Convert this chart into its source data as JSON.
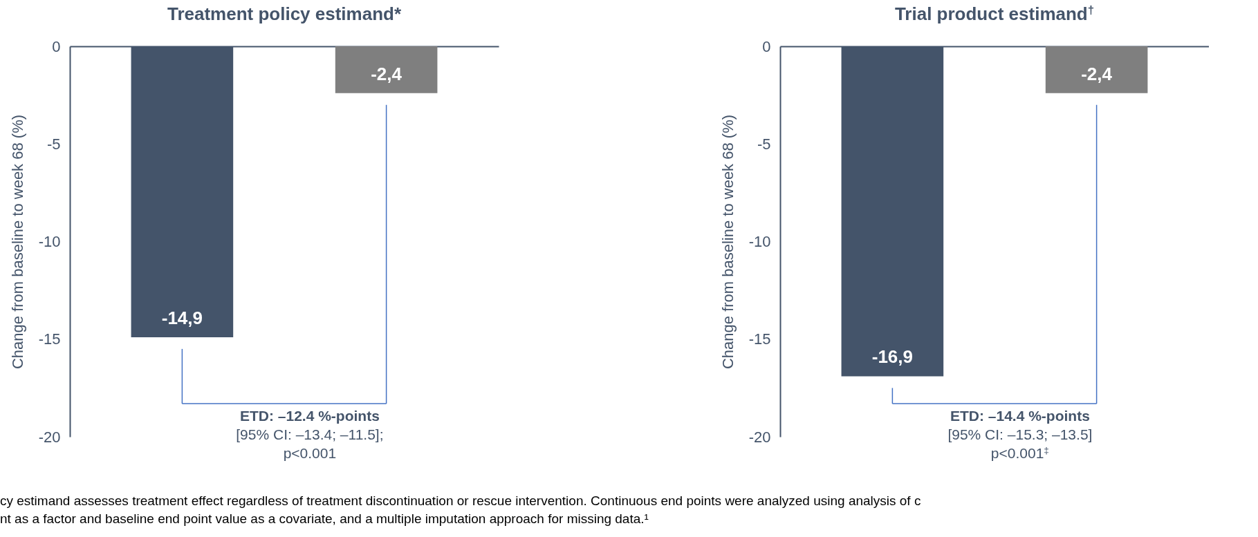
{
  "chart_data": [
    {
      "type": "bar",
      "title": "Treatment policy estimand*",
      "ylabel": "Change from baseline to week 68 (%)",
      "categories": [
        null,
        null
      ],
      "values": [
        -14.9,
        -2.4
      ],
      "colors": [
        "#44546a",
        "#7f7f7f"
      ],
      "value_labels": [
        "-14,9",
        "-2,4"
      ],
      "ylim": [
        -20,
        0
      ],
      "yticks": [
        0,
        -5,
        -10,
        -15,
        -20
      ],
      "grid": false,
      "annotations": [
        "ETD: –12.4 %-points",
        "[95% CI: –13.4; –11.5];",
        "p<0.001",
        "cy estimand assesses treatment effect regardless of treatment discontinuation or rescue intervention. Continuous end points were analyzed using analysis of c",
        "nt as a factor and baseline end point value as a covariate, and a multiple imputation approach for missing data.¹"
      ]
    },
    {
      "type": "bar",
      "title": "Trial product estimand$^{†}$",
      "ylabel": "Change from baseline to week 68 (%)",
      "categories": [
        null,
        null
      ],
      "values": [
        -16.9,
        -2.4
      ],
      "colors": [
        "#44546a",
        "#7f7f7f"
      ],
      "value_labels": [
        "-16,9",
        "-2,4"
      ],
      "ylim": [
        -20,
        0
      ],
      "yticks": [
        0,
        -5,
        -10,
        -15,
        -20
      ],
      "grid": false,
      "annotations": [
        "ETD: –14.4 %-points",
        "[95% CI: –15.3; –13.5]",
        "p<0.001$^{‡}$"
      ]
    }
  ]
}
